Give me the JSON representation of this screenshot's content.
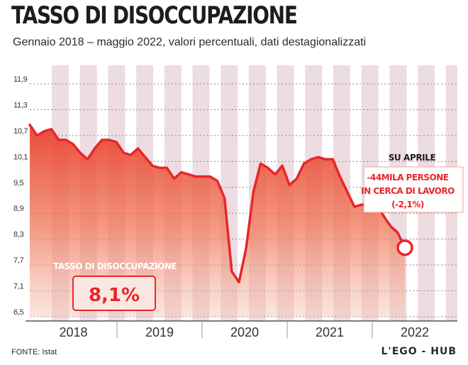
{
  "header": {
    "title": "TASSO DI DISOCCUPAZIONE",
    "subtitle": "Gennaio 2018 – maggio 2022, valori percentuali, dati destagionalizzati"
  },
  "footer": {
    "source": "FONTE: Istat",
    "brand": "L'EGO - HUB"
  },
  "colors": {
    "line": "#e8262a",
    "fill": "#ef6b47",
    "stripe": "#eddde2",
    "grid": "#8a8a8a",
    "text": "#1d1d1b"
  },
  "chart_data": {
    "type": "area",
    "ylim": [
      6.5,
      11.9
    ],
    "yticks": [
      "11,9",
      "11,3",
      "10,7",
      "10,1",
      "9,5",
      "8,9",
      "8,3",
      "7,7",
      "7,1",
      "6,5"
    ],
    "ytick_values": [
      11.9,
      11.3,
      10.7,
      10.1,
      9.5,
      8.9,
      8.3,
      7.7,
      7.1,
      6.5
    ],
    "years": [
      "2018",
      "2019",
      "2020",
      "2021",
      "2022"
    ],
    "grid": true,
    "series": [
      {
        "values": [
          10.95,
          10.7,
          10.8,
          10.85,
          10.6,
          10.6,
          10.5,
          10.3,
          10.15,
          10.4,
          10.6,
          10.6,
          10.55,
          10.3,
          10.25,
          10.4,
          10.2,
          10.0,
          9.95,
          9.95,
          9.7,
          9.85,
          9.8,
          9.75,
          9.75,
          9.75,
          9.65,
          9.25,
          7.55,
          7.3,
          8.1,
          9.4,
          10.05,
          9.95,
          9.8,
          10.0,
          9.55,
          9.7,
          10.05,
          10.15,
          10.2,
          10.15,
          10.15,
          9.75,
          9.4,
          9.05,
          9.1,
          9.05,
          9.15,
          8.85,
          8.6,
          8.45,
          8.1
        ]
      }
    ],
    "annotations": {
      "label": "TASSO DI DISOCCUPAZIONE",
      "value": "8,1%",
      "callout_title": "SU APRILE",
      "callout_lines": [
        "-44MILA PERSONE",
        "IN CERCA DI LAVORO",
        "(-2,1%)"
      ]
    }
  }
}
